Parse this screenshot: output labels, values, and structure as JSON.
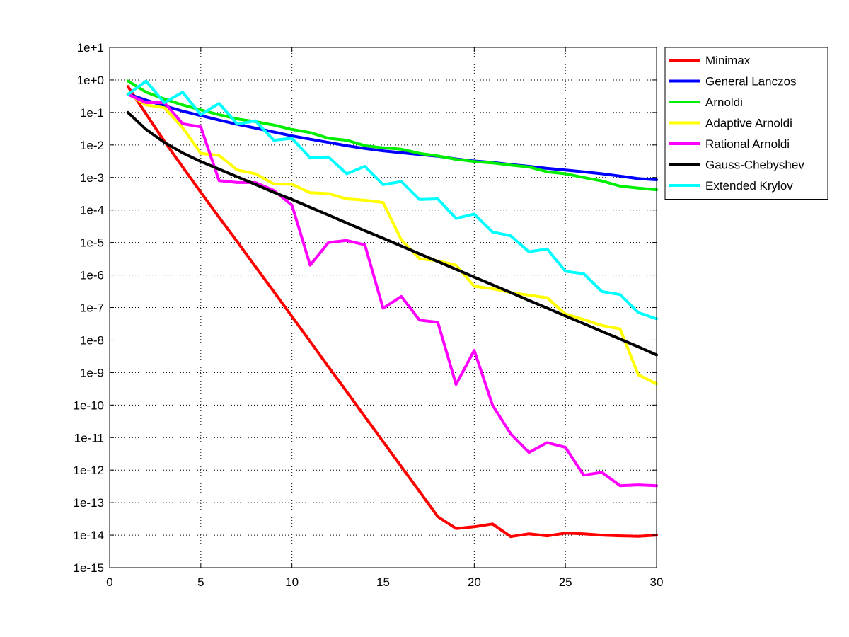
{
  "chart_data": {
    "type": "line",
    "title": "",
    "xlabel": "",
    "ylabel": "",
    "xlim": [
      0,
      30
    ],
    "ylim": [
      1e-15,
      10
    ],
    "y_scale": "log",
    "grid": true,
    "legend_position": "outside-top-right",
    "x_ticks": [
      "0",
      "5",
      "10",
      "15",
      "20",
      "25",
      "30"
    ],
    "y_ticks": [
      "1e+1",
      "1e+0",
      "1e-1",
      "1e-2",
      "1e-3",
      "1e-4",
      "1e-5",
      "1e-6",
      "1e-7",
      "1e-8",
      "1e-9",
      "1e-10",
      "1e-11",
      "1e-12",
      "1e-13",
      "1e-14",
      "1e-15"
    ],
    "x": [
      1,
      2,
      3,
      4,
      5,
      6,
      7,
      8,
      9,
      10,
      11,
      12,
      13,
      14,
      15,
      16,
      17,
      18,
      19,
      20,
      21,
      22,
      23,
      24,
      25,
      26,
      27,
      28,
      29,
      30
    ],
    "series": [
      {
        "name": "Minimax",
        "color": "#ff0000",
        "values": [
          0.63,
          0.09,
          0.013,
          0.0021,
          0.00035,
          6e-05,
          1.05e-05,
          1.8e-06,
          3.1e-07,
          5.3e-08,
          9e-09,
          1.5e-09,
          2.6e-10,
          4.4e-11,
          7.5e-12,
          1.28e-12,
          2.2e-13,
          3.7e-14,
          1.6e-14,
          1.8e-14,
          2.2e-14,
          9e-15,
          1.1e-14,
          9.5e-15,
          1.15e-14,
          1.1e-14,
          1e-14,
          9.5e-15,
          9.2e-15,
          1e-14
        ]
      },
      {
        "name": "General Lanczos",
        "color": "#0000ff",
        "values": [
          0.37,
          0.24,
          0.16,
          0.11,
          0.08,
          0.058,
          0.043,
          0.033,
          0.025,
          0.019,
          0.015,
          0.012,
          0.0095,
          0.0078,
          0.0066,
          0.0058,
          0.0051,
          0.0045,
          0.0037,
          0.0032,
          0.0029,
          0.0025,
          0.0022,
          0.0019,
          0.0017,
          0.0015,
          0.0013,
          0.0011,
          0.00092,
          0.00085
        ]
      },
      {
        "name": "Arnoldi",
        "color": "#00ee00",
        "values": [
          0.93,
          0.42,
          0.26,
          0.17,
          0.12,
          0.085,
          0.063,
          0.052,
          0.041,
          0.03,
          0.024,
          0.016,
          0.014,
          0.0095,
          0.0082,
          0.0074,
          0.0055,
          0.0046,
          0.0036,
          0.0031,
          0.0028,
          0.0024,
          0.0021,
          0.0015,
          0.0013,
          0.001,
          0.00078,
          0.00054,
          0.00047,
          0.00042
        ]
      },
      {
        "name": "Adaptive Arnoldi",
        "color": "#ffff00",
        "values": [
          0.38,
          0.17,
          0.14,
          0.034,
          0.0055,
          0.0048,
          0.0017,
          0.0013,
          0.00063,
          0.00062,
          0.00034,
          0.00032,
          0.00022,
          0.0002,
          0.00017,
          1.2e-05,
          3.2e-06,
          2.7e-06,
          2e-06,
          4.5e-07,
          3.8e-07,
          2.9e-07,
          2.4e-07,
          2e-07,
          6.3e-08,
          4.3e-08,
          2.8e-08,
          2.2e-08,
          8.5e-10,
          4.5e-10
        ]
      },
      {
        "name": "Rational Arnoldi",
        "color": "#ff00ff",
        "values": [
          0.36,
          0.2,
          0.2,
          0.045,
          0.036,
          0.0008,
          0.0007,
          0.0007,
          0.0004,
          0.00014,
          2e-06,
          1e-05,
          1.15e-05,
          8.5e-06,
          9.5e-08,
          2.2e-07,
          4.1e-08,
          3.5e-08,
          4.3e-10,
          4.8e-09,
          1e-10,
          1.3e-11,
          3.5e-12,
          7e-12,
          5e-12,
          7e-13,
          8.5e-13,
          3.3e-13,
          3.5e-13,
          3.3e-13
        ]
      },
      {
        "name": "Gauss-Chebyshev",
        "color": "#000000",
        "values": [
          0.1,
          0.03,
          0.012,
          0.0057,
          0.0031,
          0.0018,
          0.00105,
          0.00061,
          0.00035,
          0.00021,
          0.000121,
          7e-05,
          4e-05,
          2.3e-05,
          1.35e-05,
          7.8e-06,
          4.5e-06,
          2.6e-06,
          1.5e-06,
          8.6e-07,
          5e-07,
          2.9e-07,
          1.65e-07,
          9.6e-08,
          5.5e-08,
          3.2e-08,
          1.85e-08,
          1.07e-08,
          6.2e-09,
          3.5e-09
        ]
      },
      {
        "name": "Extended Krylov",
        "color": "#00ffff",
        "values": [
          0.36,
          0.92,
          0.2,
          0.42,
          0.085,
          0.19,
          0.044,
          0.055,
          0.014,
          0.016,
          0.004,
          0.0043,
          0.0013,
          0.0022,
          0.0006,
          0.00075,
          0.00021,
          0.00022,
          5.5e-05,
          7.5e-05,
          2.1e-05,
          1.6e-05,
          5.2e-06,
          6.3e-06,
          1.3e-06,
          1.1e-06,
          3.1e-07,
          2.5e-07,
          7e-08,
          4.5e-08
        ]
      }
    ]
  }
}
